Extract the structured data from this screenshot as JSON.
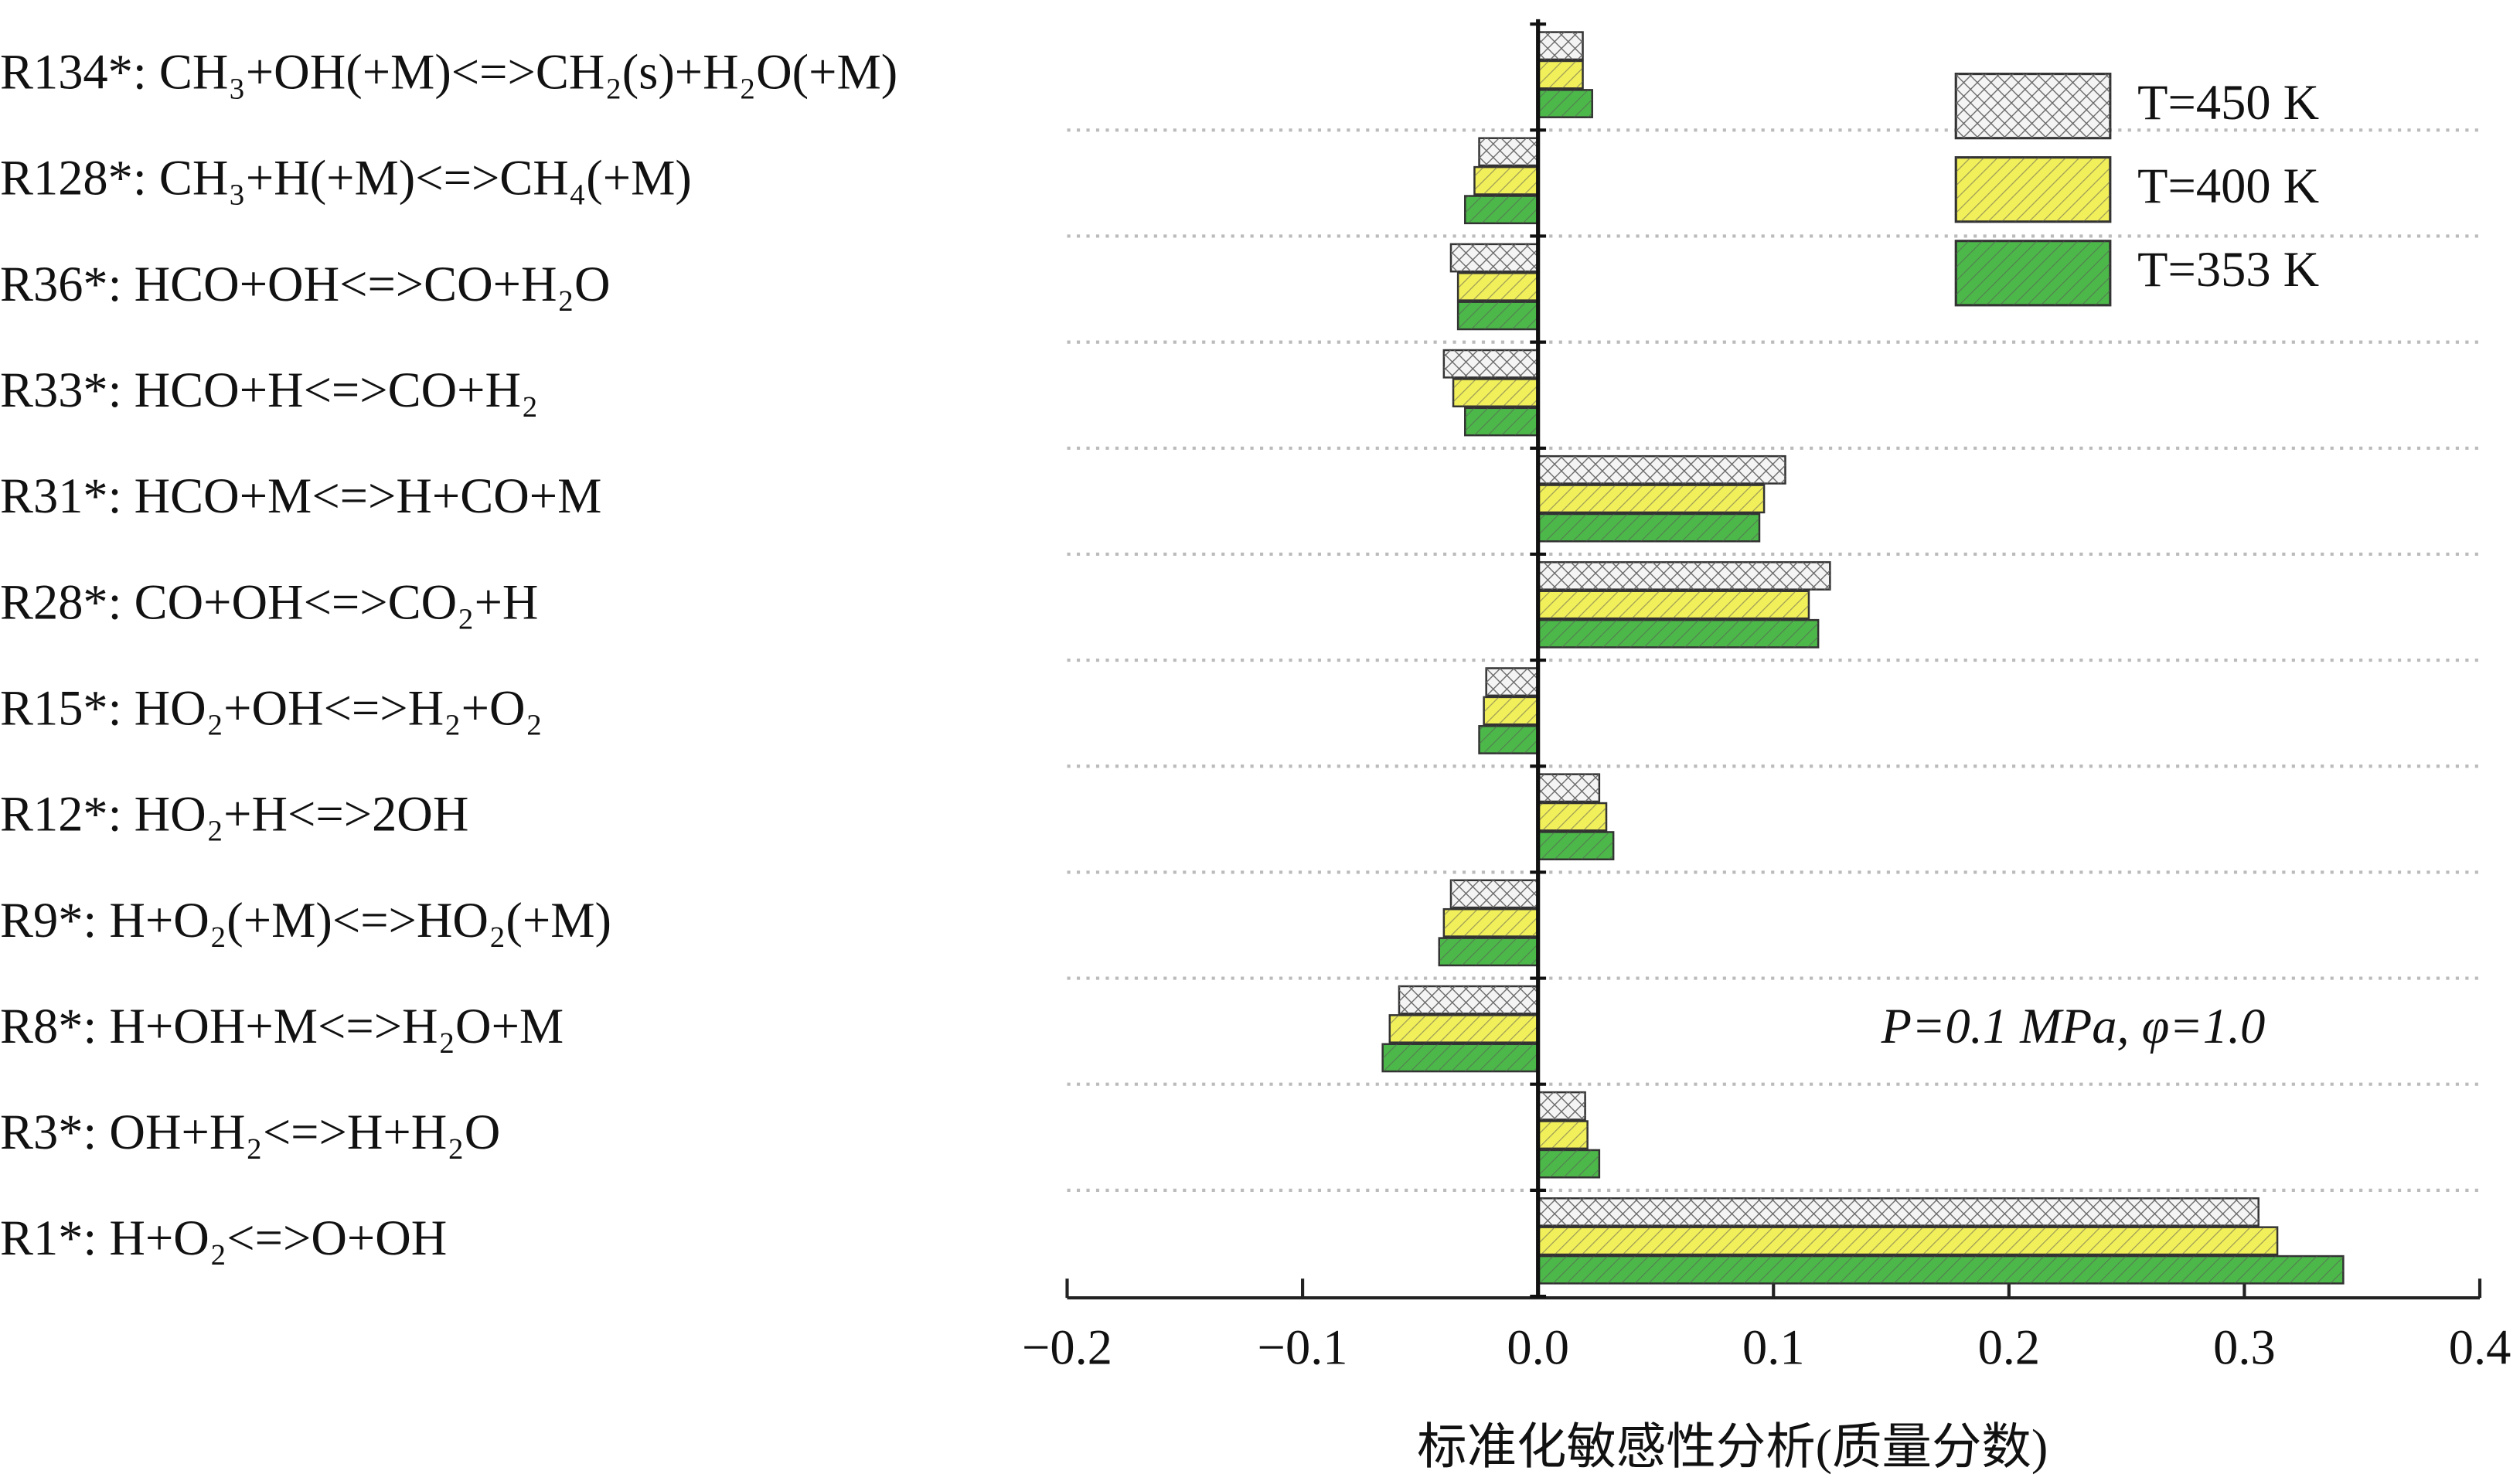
{
  "chart_data": {
    "type": "barh",
    "categories": [
      "R134*: CH₃+OH(+M)<=>CH₂(s)+H₂O(+M)",
      "R128*: CH₃+H(+M)<=>CH₄(+M)",
      "R36*: HCO+OH<=>CO+H₂O",
      "R33*: HCO+H<=>CO+H₂",
      "R31*: HCO+M<=>H+CO+M",
      "R28*: CO+OH<=>CO₂+H",
      "R15*: HO₂+OH<=>H₂+O₂",
      "R12*: HO₂+H<=>2OH",
      "R9*: H+O₂(+M)<=>HO₂(+M)",
      "R8*: H+OH+M<=>H₂O+M",
      "R3*: OH+H₂<=>H+H₂O",
      "R1*: H+O₂<=>O+OH"
    ],
    "series": [
      {
        "name": "T=450 K",
        "color": "#f4f4f4",
        "values": [
          0.019,
          -0.025,
          -0.037,
          -0.04,
          0.105,
          0.124,
          -0.022,
          0.026,
          -0.037,
          -0.059,
          0.02,
          0.306
        ]
      },
      {
        "name": "T=400 K",
        "color": "#f2f05a",
        "values": [
          0.019,
          -0.027,
          -0.034,
          -0.036,
          0.096,
          0.115,
          -0.023,
          0.029,
          -0.04,
          -0.063,
          0.021,
          0.314
        ]
      },
      {
        "name": "T=353 K",
        "color": "#4db84a",
        "values": [
          0.023,
          -0.031,
          -0.034,
          -0.031,
          0.094,
          0.119,
          -0.025,
          0.032,
          -0.042,
          -0.066,
          0.026,
          0.342
        ]
      }
    ],
    "xlabel": "标准化敏感性分析(质量分数)",
    "annotation": "P=0.1 MPa, φ=1.0",
    "xlim": [
      -0.2,
      0.4
    ],
    "xticks": [
      {
        "value": -0.2,
        "label": "−0.2"
      },
      {
        "value": -0.1,
        "label": "−0.1"
      },
      {
        "value": 0,
        "label": "0.0"
      },
      0.1,
      0.2,
      0.3,
      0.4
    ],
    "grid": true,
    "legend": "upper right"
  }
}
